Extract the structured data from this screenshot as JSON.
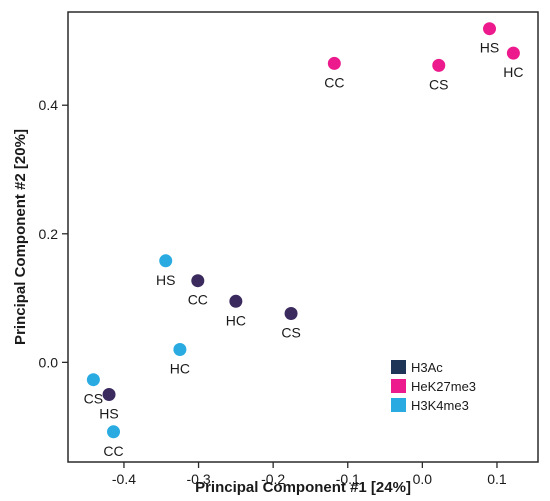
{
  "chart_data": {
    "type": "scatter",
    "title": "",
    "xlabel": "Principal Component #1 [24%]",
    "ylabel": "Principal Component #2 [20%]",
    "xlim": [
      -0.475,
      0.155
    ],
    "ylim": [
      -0.155,
      0.545
    ],
    "xticks": [
      -0.4,
      -0.3,
      -0.2,
      -0.1,
      0.0,
      0.1
    ],
    "xtick_labels": [
      "-0.4",
      "-0.3",
      "-0.2",
      "-0.1",
      "0.0",
      "0.1"
    ],
    "yticks": [
      0.0,
      0.2,
      0.4
    ],
    "ytick_labels": [
      "0.0",
      "0.2",
      "0.4"
    ],
    "grid": false,
    "legend_position": "bottom-right",
    "series": [
      {
        "name": "H3Ac",
        "color": "#3b2a5e",
        "legend_color": "#1f3557",
        "points": [
          {
            "x": -0.301,
            "y": 0.127,
            "label": "CC"
          },
          {
            "x": -0.25,
            "y": 0.095,
            "label": "HC"
          },
          {
            "x": -0.176,
            "y": 0.076,
            "label": "CS"
          },
          {
            "x": -0.42,
            "y": -0.05,
            "label": "HS"
          }
        ]
      },
      {
        "name": "HeK27me3",
        "color": "#ec1a8d",
        "legend_color": "#ec1a8d",
        "points": [
          {
            "x": -0.118,
            "y": 0.465,
            "label": "CC"
          },
          {
            "x": 0.022,
            "y": 0.462,
            "label": "CS"
          },
          {
            "x": 0.09,
            "y": 0.519,
            "label": "HS"
          },
          {
            "x": 0.122,
            "y": 0.481,
            "label": "HC"
          }
        ]
      },
      {
        "name": "H3K4me3",
        "color": "#29abe2",
        "legend_color": "#29abe2",
        "points": [
          {
            "x": -0.344,
            "y": 0.158,
            "label": "HS"
          },
          {
            "x": -0.325,
            "y": 0.02,
            "label": "HC"
          },
          {
            "x": -0.441,
            "y": -0.027,
            "label": "CS"
          },
          {
            "x": -0.414,
            "y": -0.108,
            "label": "CC"
          }
        ]
      }
    ]
  }
}
